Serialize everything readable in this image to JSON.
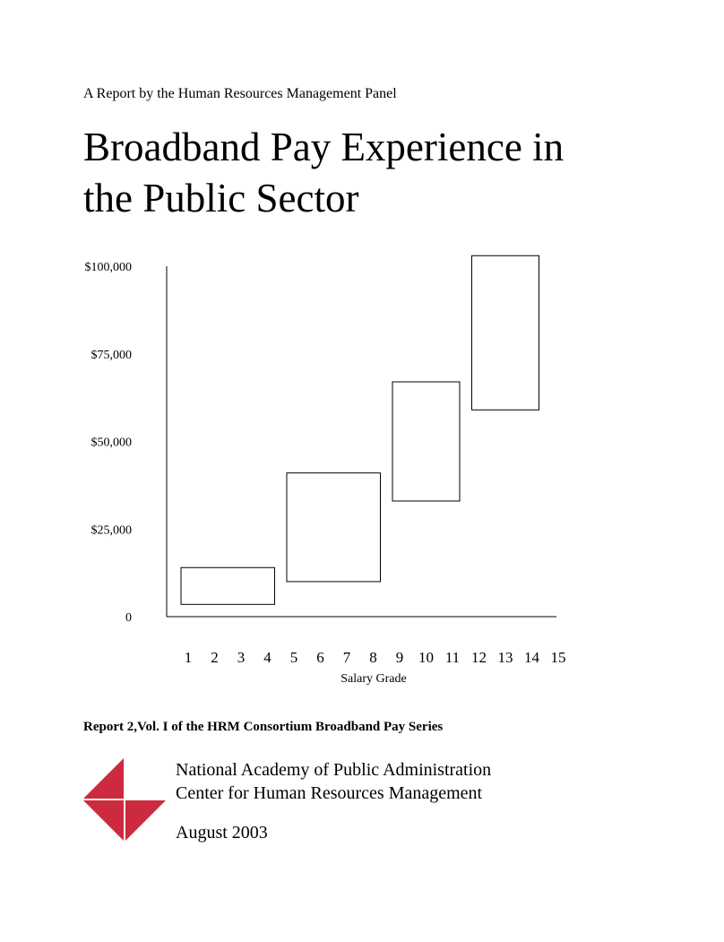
{
  "report_subtitle": "A Report by the Human Resources Management Panel",
  "title_line1": "Broadband Pay Experience in",
  "title_line2": "the Public Sector",
  "series_note": "Report 2,Vol. I of the HRM Consortium Broadband Pay Series",
  "org_line1": "National Academy of Public Administration",
  "org_line2": "Center for Human Resources Management",
  "date": "August 2003",
  "logo_color": "#cc2a3f",
  "chart_data": {
    "type": "bar",
    "xlabel": "Salary Grade",
    "ylabel": "",
    "x_ticks": [
      "1",
      "2",
      "3",
      "4",
      "5",
      "6",
      "7",
      "8",
      "9",
      "10",
      "11",
      "12",
      "13",
      "14",
      "15"
    ],
    "y_ticks": [
      "0",
      "$25,000",
      "$50,000",
      "$75,000",
      "$100,000"
    ],
    "ylim": [
      0,
      100000
    ],
    "grid": false,
    "bands": [
      {
        "grade_start": 1,
        "grade_end": 4,
        "min": 3500,
        "max": 14000
      },
      {
        "grade_start": 5,
        "grade_end": 8,
        "min": 10000,
        "max": 41000
      },
      {
        "grade_start": 9,
        "grade_end": 11,
        "min": 33000,
        "max": 67000
      },
      {
        "grade_start": 12,
        "grade_end": 14,
        "min": 59000,
        "max": 103000
      }
    ]
  }
}
